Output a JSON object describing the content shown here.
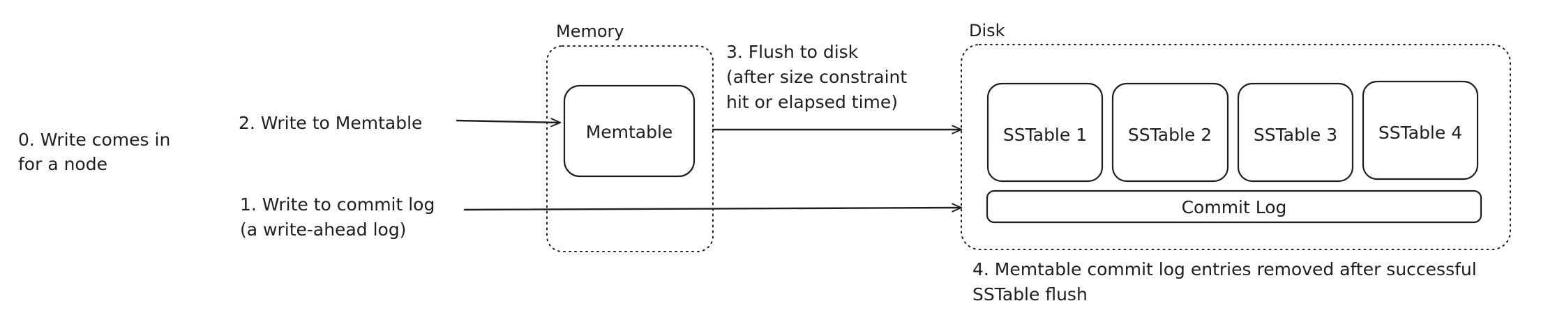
{
  "steps": {
    "step0": [
      "0. Write comes in",
      "for a node"
    ],
    "step1": [
      "1. Write to commit log",
      "(a write-ahead log)"
    ],
    "step2": "2. Write to Memtable",
    "step3": [
      "3. Flush to disk",
      "(after size constraint",
      "hit or elapsed time)"
    ],
    "step4": [
      "4. Memtable commit log entries removed after successful",
      "SSTable flush"
    ]
  },
  "memory": {
    "title": "Memory",
    "memtable_label": "Memtable"
  },
  "disk": {
    "title": "Disk",
    "sstables": [
      "SSTable 1",
      "SSTable 2",
      "SSTable 3",
      "SSTable 4"
    ],
    "commit_log_label": "Commit Log"
  },
  "colors": {
    "stroke": "#1e1e1e",
    "background": "#ffffff"
  }
}
